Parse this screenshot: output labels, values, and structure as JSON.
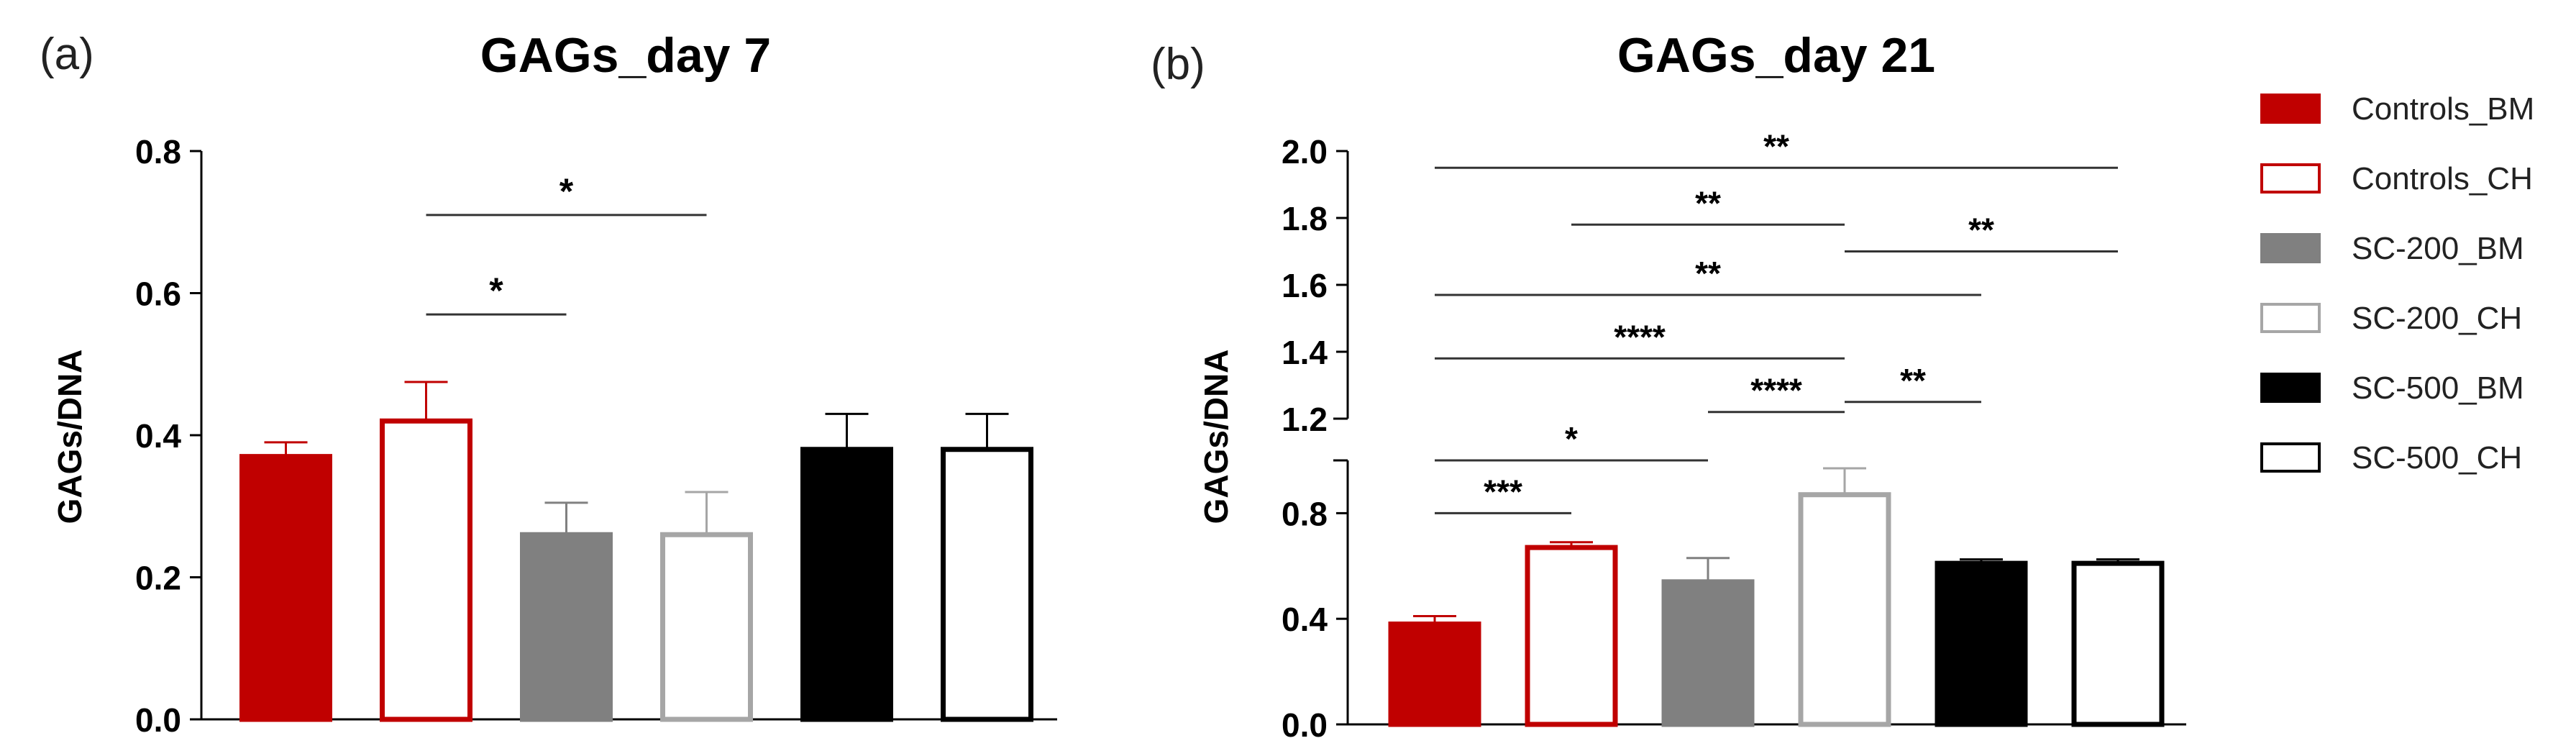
{
  "panels": [
    {
      "label": "(a)"
    },
    {
      "label": "(b)"
    }
  ],
  "legend": [
    {
      "name": "Controls_BM",
      "fill": "#c00000",
      "stroke": "#c00000"
    },
    {
      "name": "Controls_CH",
      "fill": "#ffffff",
      "stroke": "#c00000"
    },
    {
      "name": "SC-200_BM",
      "fill": "#808080",
      "stroke": "#808080"
    },
    {
      "name": "SC-200_CH",
      "fill": "#ffffff",
      "stroke": "#a6a6a6"
    },
    {
      "name": "SC-500_BM",
      "fill": "#000000",
      "stroke": "#000000"
    },
    {
      "name": "SC-500_CH",
      "fill": "#ffffff",
      "stroke": "#000000"
    }
  ],
  "chart_data": [
    {
      "type": "bar",
      "title": "GAGs_day 7",
      "ylabel": "GAGs/DNA",
      "xlabel": "",
      "ylim": [
        0,
        0.8
      ],
      "yticks": [
        0.0,
        0.2,
        0.4,
        0.6,
        0.8
      ],
      "ytick_labels": [
        "0.0",
        "0.2",
        "0.4",
        "0.6",
        "0.8"
      ],
      "categories": [
        "Controls_BM",
        "Controls_CH",
        "SC-200_BM",
        "SC-200_CH",
        "SC-500_BM",
        "SC-500_CH"
      ],
      "values": [
        0.37,
        0.42,
        0.26,
        0.26,
        0.38,
        0.38
      ],
      "errors": [
        0.02,
        0.055,
        0.045,
        0.06,
        0.05,
        0.05
      ],
      "significance": [
        {
          "from": 1,
          "to": 2,
          "label": "*"
        },
        {
          "from": 1,
          "to": 3,
          "label": "*"
        }
      ]
    },
    {
      "type": "bar",
      "title": "GAGs_day 21",
      "ylabel": "GAGs/DNA",
      "xlabel": "",
      "ylim": [
        0,
        2.0
      ],
      "axis_break": [
        1.0,
        1.2
      ],
      "yticks": [
        0.0,
        0.4,
        0.8,
        1.2,
        1.4,
        1.6,
        1.8,
        2.0
      ],
      "ytick_labels": [
        "0.0",
        "0.4",
        "0.8",
        "1.2",
        "1.4",
        "1.6",
        "1.8",
        "2.0"
      ],
      "categories": [
        "Controls_BM",
        "Controls_CH",
        "SC-200_BM",
        "SC-200_CH",
        "SC-500_BM",
        "SC-500_CH"
      ],
      "values": [
        0.38,
        0.67,
        0.54,
        0.87,
        0.61,
        0.61
      ],
      "errors": [
        0.03,
        0.02,
        0.09,
        0.1,
        0.015,
        0.015
      ],
      "significance": [
        {
          "from": 0,
          "to": 1,
          "y": 0.8,
          "label": "***"
        },
        {
          "from": 0,
          "to": 2,
          "y": 1.0,
          "label": "*"
        },
        {
          "from": 2,
          "to": 3,
          "y": 1.22,
          "label": "****"
        },
        {
          "from": 3,
          "to": 4,
          "y": 1.25,
          "label": "**"
        },
        {
          "from": 0,
          "to": 3,
          "y": 1.38,
          "label": "****"
        },
        {
          "from": 0,
          "to": 4,
          "y": 1.57,
          "label": "**"
        },
        {
          "from": 3,
          "to": 5,
          "y": 1.7,
          "label": "**"
        },
        {
          "from": 1,
          "to": 3,
          "y": 1.78,
          "label": "**"
        },
        {
          "from": 0,
          "to": 5,
          "y": 1.95,
          "label": "**"
        }
      ]
    }
  ]
}
